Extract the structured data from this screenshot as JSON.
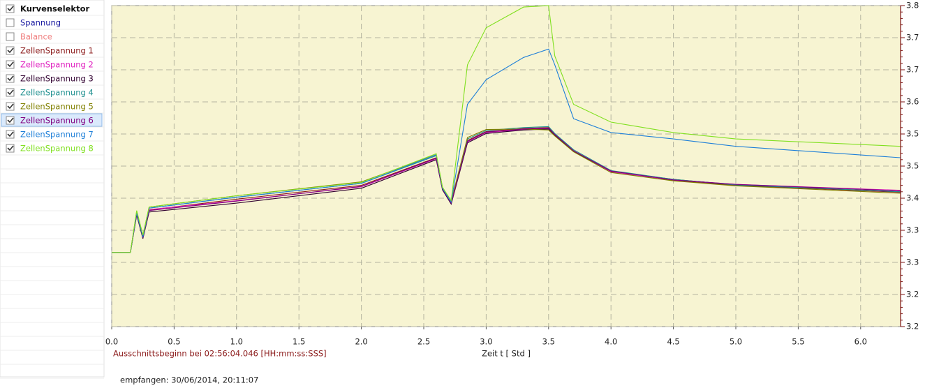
{
  "selector_title": "Kurvenselektor",
  "selector_title_checked": true,
  "selected_index": 8,
  "status": "empfangen: 30/06/2014, 20:11:07",
  "chart_data": {
    "type": "line",
    "x_label": "Zeit  t   [ Std ]",
    "annotation": "Ausschnittsbeginn bei 02:56:04.046 [HH:mm:ss:SSS]",
    "grid": true,
    "background": "#f7f4d2",
    "y_axis_side": "right",
    "xlim": [
      0,
      6.32
    ],
    "xticks": [
      {
        "value": 0,
        "label": "0.0"
      },
      0.5,
      {
        "value": 1,
        "label": "1.0"
      },
      1.5,
      {
        "value": 2,
        "label": "2.0"
      },
      2.5,
      {
        "value": 3,
        "label": "3.0"
      },
      3.5,
      {
        "value": 4,
        "label": "4.0"
      },
      4.5,
      {
        "value": 5,
        "label": "5.0"
      },
      5.5,
      {
        "value": 6,
        "label": "6.0"
      }
    ],
    "ylim": [
      3.15,
      3.8
    ],
    "yticks": [
      {
        "value": 3.15,
        "label": "3.2"
      },
      {
        "value": 3.215,
        "label": "3.2"
      },
      {
        "value": 3.28,
        "label": "3.3"
      },
      {
        "value": 3.345,
        "label": "3.3"
      },
      {
        "value": 3.41,
        "label": "3.4"
      },
      {
        "value": 3.475,
        "label": "3.5"
      },
      {
        "value": 3.54,
        "label": "3.5"
      },
      {
        "value": 3.605,
        "label": "3.6"
      },
      {
        "value": 3.67,
        "label": "3.7"
      },
      {
        "value": 3.735,
        "label": "3.7"
      },
      {
        "value": 3.8,
        "label": "3.8"
      }
    ],
    "x": [
      0,
      0.15,
      0.2,
      0.25,
      0.3,
      1.0,
      2.0,
      2.6,
      2.65,
      2.72,
      2.85,
      3.0,
      3.3,
      3.5,
      3.55,
      3.7,
      4.0,
      4.5,
      5.0,
      6.32
    ],
    "series": [
      {
        "name": "Spannung",
        "color": "#1a1aa0",
        "checked": false
      },
      {
        "name": "Balance",
        "color": "#f08080",
        "checked": false
      },
      {
        "name": "ZellenSpannung 1",
        "color": "#8b1a1a",
        "checked": true,
        "values": [
          3.3,
          3.3,
          3.378,
          3.33,
          3.386,
          3.408,
          3.436,
          3.492,
          3.429,
          3.401,
          3.527,
          3.545,
          3.551,
          3.553,
          3.539,
          3.506,
          3.464,
          3.446,
          3.436,
          3.422
        ]
      },
      {
        "name": "ZellenSpannung 2",
        "color": "#e020c0",
        "checked": true,
        "values": [
          3.3,
          3.3,
          3.38,
          3.331,
          3.387,
          3.405,
          3.433,
          3.49,
          3.428,
          3.4,
          3.524,
          3.543,
          3.549,
          3.551,
          3.538,
          3.505,
          3.463,
          3.447,
          3.438,
          3.426
        ]
      },
      {
        "name": "ZellenSpannung 3",
        "color": "#300030",
        "checked": true,
        "values": [
          3.3,
          3.3,
          3.376,
          3.328,
          3.382,
          3.4,
          3.43,
          3.488,
          3.427,
          3.398,
          3.522,
          3.541,
          3.548,
          3.55,
          3.537,
          3.505,
          3.465,
          3.448,
          3.437,
          3.423
        ]
      },
      {
        "name": "ZellenSpannung 4",
        "color": "#209090",
        "checked": true,
        "values": [
          3.3,
          3.3,
          3.382,
          3.333,
          3.39,
          3.412,
          3.44,
          3.496,
          3.431,
          3.403,
          3.53,
          3.547,
          3.553,
          3.555,
          3.541,
          3.508,
          3.466,
          3.448,
          3.437,
          3.423
        ]
      },
      {
        "name": "ZellenSpannung 5",
        "color": "#808000",
        "checked": true,
        "values": [
          3.3,
          3.3,
          3.384,
          3.335,
          3.392,
          3.415,
          3.443,
          3.498,
          3.432,
          3.404,
          3.533,
          3.549,
          3.55,
          3.548,
          3.536,
          3.504,
          3.462,
          3.445,
          3.435,
          3.42
        ]
      },
      {
        "name": "ZellenSpannung 6",
        "color": "#800080",
        "checked": true,
        "values": [
          3.3,
          3.3,
          3.379,
          3.33,
          3.385,
          3.404,
          3.434,
          3.491,
          3.429,
          3.4,
          3.525,
          3.544,
          3.55,
          3.552,
          3.539,
          3.506,
          3.465,
          3.447,
          3.438,
          3.425
        ]
      },
      {
        "name": "ZellenSpannung 7",
        "color": "#1e7fd8",
        "checked": true,
        "values": [
          3.3,
          3.3,
          3.38,
          3.331,
          3.39,
          3.412,
          3.44,
          3.498,
          3.43,
          3.402,
          3.6,
          3.65,
          3.695,
          3.712,
          3.68,
          3.571,
          3.543,
          3.53,
          3.515,
          3.492
        ]
      },
      {
        "name": "ZellenSpannung 8",
        "color": "#80e020",
        "checked": true,
        "values": [
          3.3,
          3.3,
          3.385,
          3.335,
          3.392,
          3.415,
          3.442,
          3.5,
          3.432,
          3.405,
          3.68,
          3.755,
          3.797,
          3.8,
          3.698,
          3.6,
          3.564,
          3.543,
          3.53,
          3.515
        ]
      }
    ]
  }
}
